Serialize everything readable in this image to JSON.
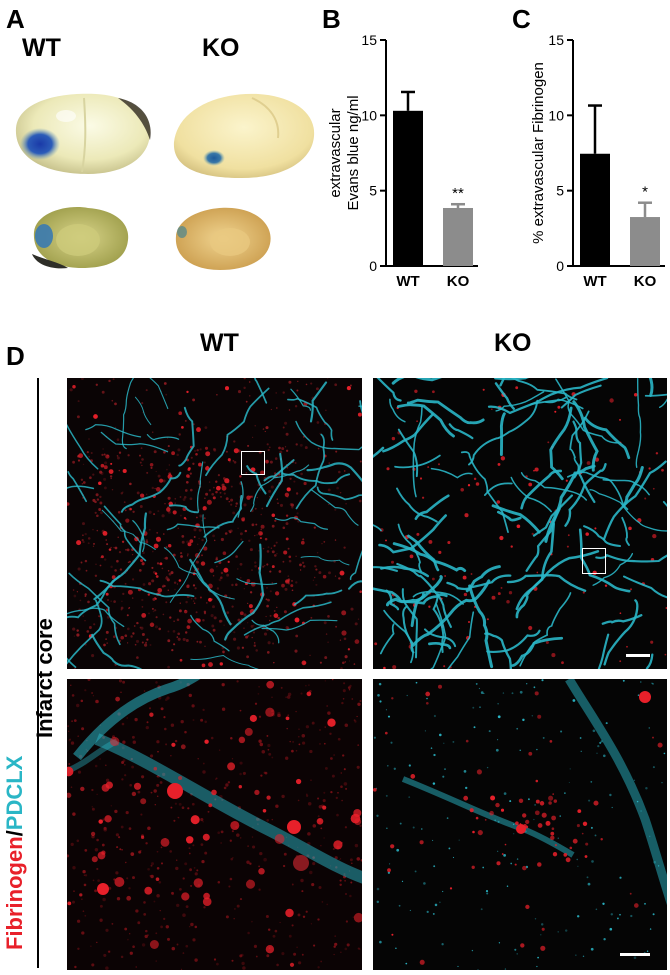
{
  "panels": {
    "a": {
      "letter": "A",
      "wt_label": "WT",
      "ko_label": "KO"
    },
    "b": {
      "letter": "B"
    },
    "c": {
      "letter": "C"
    },
    "d": {
      "letter": "D",
      "wt_label": "WT",
      "ko_label": "KO",
      "stain_label_1": "Fibrinogen",
      "stain_sep": "/",
      "stain_label_2": "PDCLX",
      "region_label": "Infarct core",
      "colors": {
        "fibrinogen": "#e8202a",
        "pdclx": "#2ab6c6"
      }
    }
  },
  "chart_data": [
    {
      "type": "bar",
      "ylabel_line1": "extravascular",
      "ylabel_line2": "Evans blue ng/ml",
      "categories": [
        "WT",
        "KO"
      ],
      "values": [
        10.3,
        3.85
      ],
      "errors": [
        1.25,
        0.25
      ],
      "significance": [
        "",
        "**"
      ],
      "ylim": [
        0,
        15
      ],
      "yticks": [
        0,
        5,
        10,
        15
      ],
      "colors": [
        "#000000",
        "#8c8c8c"
      ]
    },
    {
      "type": "bar",
      "ylabel_line1": "% extravascular Fibrinogen",
      "categories": [
        "WT",
        "KO"
      ],
      "values": [
        7.45,
        3.25
      ],
      "errors": [
        3.2,
        0.95
      ],
      "significance": [
        "",
        "*"
      ],
      "ylim": [
        0,
        15
      ],
      "yticks": [
        0,
        5,
        10,
        15
      ],
      "colors": [
        "#000000",
        "#8c8c8c"
      ]
    }
  ]
}
